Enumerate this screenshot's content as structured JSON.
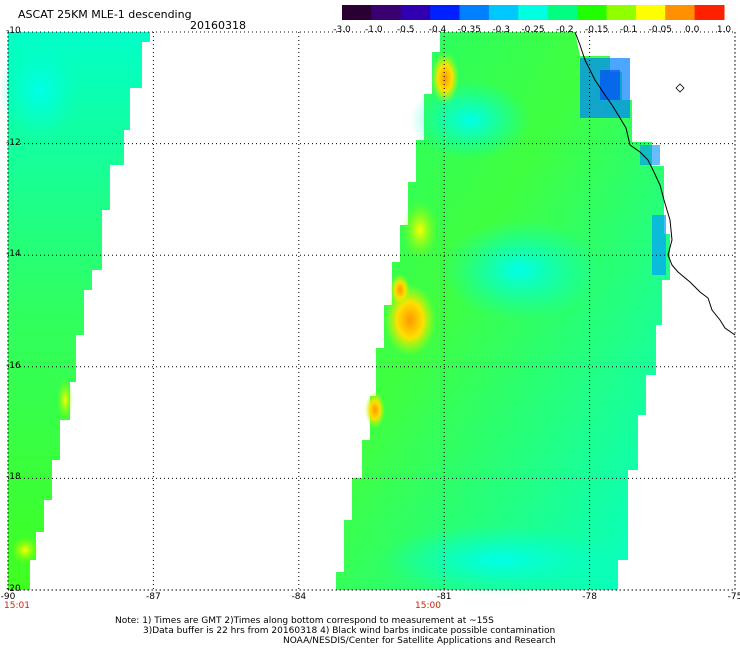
{
  "header": {
    "title": "ASCAT 25KM MLE-1 descending",
    "date": "20160318"
  },
  "colorbar": {
    "labels": [
      "-3.0",
      "-1.0",
      "-0.5",
      "-0.4",
      "-0.35",
      "-0.3",
      "-0.25",
      "-0.2",
      "-0.15",
      "-0.1",
      "-0.05",
      "0.0",
      "1.0"
    ],
    "colors": [
      "#2a0033",
      "#3a0070",
      "#3000b0",
      "#0020ff",
      "#0080ff",
      "#00c8ff",
      "#00ffe0",
      "#00ff80",
      "#20ff00",
      "#90ff00",
      "#ffff00",
      "#ff9000",
      "#ff2000"
    ]
  },
  "map": {
    "y_labels": [
      "-10",
      "-12",
      "-14",
      "-16",
      "-18",
      "-20"
    ],
    "x_labels": [
      "-90",
      "-87",
      "-84",
      "-81",
      "-78",
      "-75"
    ],
    "time_labels": [
      "15:01",
      "15:00"
    ],
    "lon_range": [
      -90,
      -75
    ],
    "lat_range": [
      -20,
      -10
    ]
  },
  "notes": {
    "line1": "Note: 1) Times are GMT 2)Times along bottom correspond to measurement at ~15S",
    "line2": "3)Data buffer is 22 hrs from 20160318 4) Black wind barbs indicate possible contamination",
    "line3": "NOAA/NESDIS/Center for Satellite Applications and Research"
  }
}
